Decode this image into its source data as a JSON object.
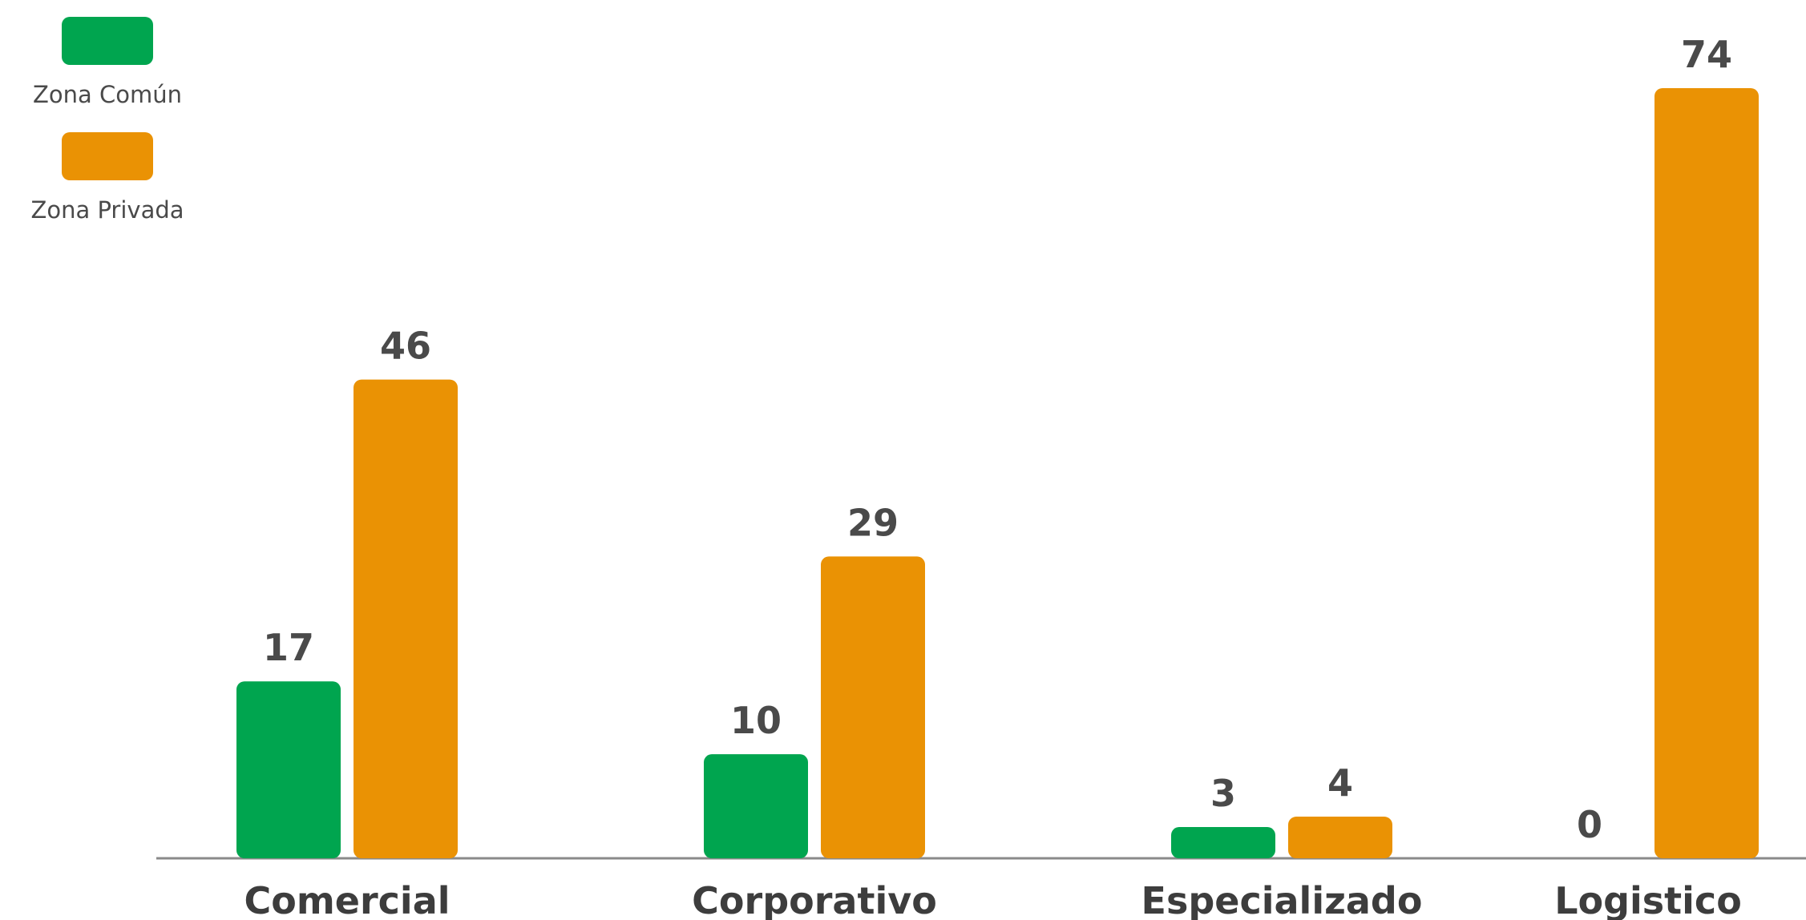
{
  "chart_data": {
    "type": "bar",
    "categories": [
      "Comercial",
      "Corporativo",
      "Especializado",
      "Logistico"
    ],
    "series": [
      {
        "name": "Zona Común",
        "color": "#00a54f",
        "values": [
          17,
          10,
          3,
          0
        ]
      },
      {
        "name": "Zona Privada",
        "color": "#ea9204",
        "values": [
          46,
          29,
          4,
          74
        ]
      }
    ],
    "value_labels": [
      [
        "17",
        "10",
        "3",
        "0"
      ],
      [
        "46",
        "29",
        "4",
        "74"
      ]
    ],
    "ylim": [
      0,
      74
    ],
    "grid": false,
    "legend": "top-left"
  }
}
